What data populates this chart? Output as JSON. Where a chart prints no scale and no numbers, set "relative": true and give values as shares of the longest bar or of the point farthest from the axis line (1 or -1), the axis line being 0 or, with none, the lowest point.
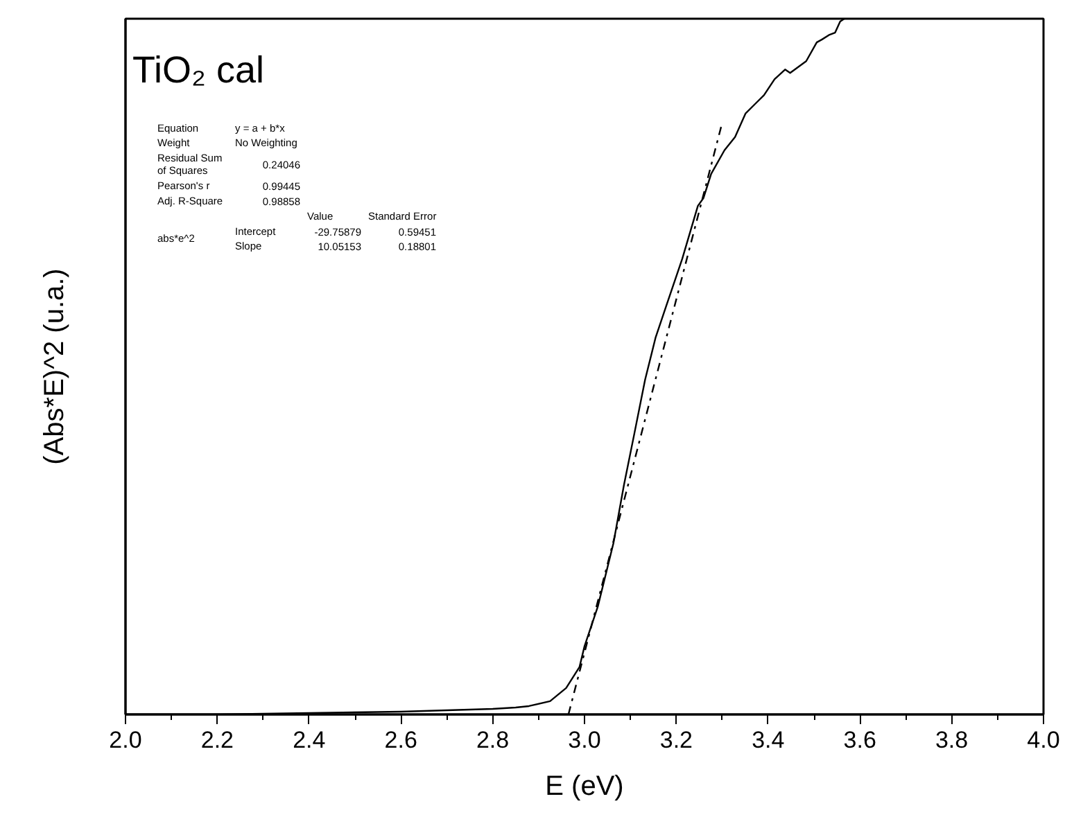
{
  "chart_data": {
    "type": "line",
    "title": "TiO₂ cal",
    "xlabel": "E (eV)",
    "ylabel": "(Abs*E)^2 (u.a.)",
    "relative": true,
    "xlim": [
      2.0,
      4.0
    ],
    "xticks": [
      {
        "value": 2.0,
        "label": "2.0"
      },
      {
        "value": 2.2,
        "label": "2.2"
      },
      {
        "value": 2.4,
        "label": "2.4"
      },
      {
        "value": 2.6,
        "label": "2.6"
      },
      {
        "value": 2.8,
        "label": "2.8"
      },
      {
        "value": 3.0,
        "label": "3.0"
      },
      {
        "value": 3.2,
        "label": "3.2"
      },
      {
        "value": 3.4,
        "label": "3.4"
      },
      {
        "value": 3.6,
        "label": "3.6"
      },
      {
        "value": 3.8,
        "label": "3.8"
      },
      {
        "value": 4.0,
        "label": "4.0"
      }
    ],
    "grid": false,
    "marker": "none",
    "series": [
      {
        "color": "#000000",
        "line_style": "solid",
        "x": [
          2.0,
          2.2,
          2.4,
          2.6,
          2.7,
          2.8,
          2.85,
          2.879,
          2.925,
          2.96,
          2.989,
          3.0,
          3.029,
          3.063,
          3.086,
          3.109,
          3.132,
          3.155,
          3.178,
          3.213,
          3.247,
          3.259,
          3.276,
          3.305,
          3.328,
          3.351,
          3.374,
          3.391,
          3.414,
          3.437,
          3.448,
          3.483,
          3.506,
          3.517,
          3.534,
          3.546,
          3.557,
          3.566
        ],
        "values": [
          0.0,
          0.0,
          0.002,
          0.004,
          0.006,
          0.008,
          0.01,
          0.012,
          0.019,
          0.038,
          0.068,
          0.098,
          0.155,
          0.246,
          0.33,
          0.405,
          0.481,
          0.542,
          0.587,
          0.655,
          0.731,
          0.742,
          0.777,
          0.811,
          0.83,
          0.864,
          0.879,
          0.89,
          0.913,
          0.927,
          0.922,
          0.939,
          0.966,
          0.97,
          0.977,
          0.98,
          0.996,
          1.0
        ]
      },
      {
        "color": "#000000",
        "line_style": "dashdot",
        "x": [
          2.965,
          3.299
        ],
        "values": [
          0.0,
          0.848
        ]
      }
    ],
    "annotations": [
      "Equation",
      "y = a + b*x",
      "Weight",
      "No Weighting",
      "Residual Sum\nof Squares",
      "0.24046",
      "Pearson's r",
      "0.99445",
      "Adj. R-Square",
      "0.98858",
      "Value",
      "Standard Error",
      "abs*e^2",
      "Intercept",
      "-29.75879",
      "0.59451",
      "Slope",
      "10.05153",
      "0.18801"
    ]
  }
}
